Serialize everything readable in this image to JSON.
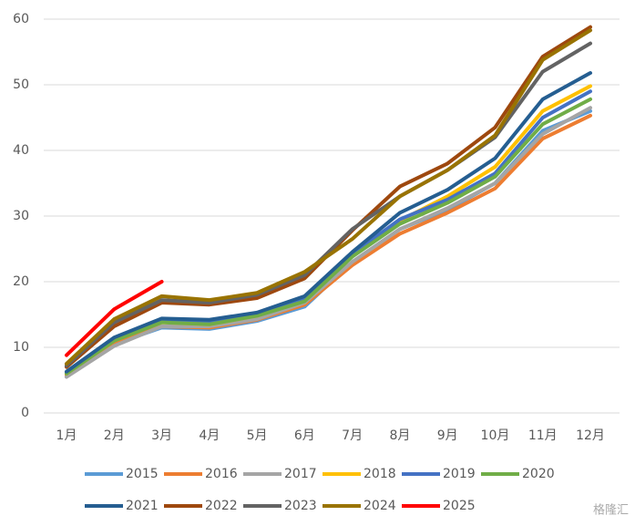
{
  "chart_data": {
    "type": "line",
    "categories": [
      "1月",
      "2月",
      "3月",
      "4月",
      "5月",
      "6月",
      "7月",
      "8月",
      "9月",
      "10月",
      "11月",
      "12月"
    ],
    "ylim": [
      0,
      60
    ],
    "yticks": [
      0,
      10,
      20,
      30,
      40,
      50,
      60
    ],
    "grid": true,
    "series": [
      {
        "name": "2015",
        "color": "#5b9bd5",
        "values": [
          5.5,
          10.5,
          13,
          12.8,
          14,
          16.2,
          23,
          28,
          31,
          35,
          43,
          46
        ]
      },
      {
        "name": "2016",
        "color": "#ed7d31",
        "values": [
          5.8,
          10.8,
          13.2,
          13,
          14.2,
          16.5,
          22.5,
          27.3,
          30.5,
          34.2,
          41.8,
          45.3
        ]
      },
      {
        "name": "2017",
        "color": "#a5a5a5",
        "values": [
          5.5,
          10.2,
          13.2,
          13.2,
          14.3,
          16.8,
          23,
          28,
          31.2,
          35,
          42.5,
          46.5
        ]
      },
      {
        "name": "2018",
        "color": "#ffc000",
        "values": [
          6,
          11,
          13.8,
          13.5,
          14.8,
          17.2,
          24,
          29.3,
          33,
          37.5,
          46,
          49.8
        ]
      },
      {
        "name": "2019",
        "color": "#4472c4",
        "values": [
          6.2,
          11.2,
          14,
          13.8,
          15,
          17.5,
          24.2,
          29.5,
          32.5,
          36.5,
          45,
          49
        ]
      },
      {
        "name": "2020",
        "color": "#70ad47",
        "values": [
          6,
          11,
          13.8,
          13.5,
          14.8,
          17,
          23.8,
          28.8,
          32,
          36,
          44,
          47.8
        ]
      },
      {
        "name": "2021",
        "color": "#255e91",
        "values": [
          6.3,
          11.5,
          14.4,
          14.2,
          15.3,
          17.8,
          24.5,
          30.5,
          34,
          38.8,
          47.8,
          51.8
        ]
      },
      {
        "name": "2022",
        "color": "#9e480e",
        "values": [
          7,
          13.2,
          16.8,
          16.5,
          17.5,
          20.5,
          27.8,
          34.5,
          38,
          43.5,
          54.3,
          58.8
        ]
      },
      {
        "name": "2023",
        "color": "#636363",
        "values": [
          7.2,
          13.8,
          17.2,
          16.8,
          18,
          21,
          28,
          33,
          37,
          42,
          52,
          56.3
        ]
      },
      {
        "name": "2024",
        "color": "#997300",
        "values": [
          7.5,
          14.3,
          17.8,
          17.2,
          18.3,
          21.5,
          26.5,
          33,
          37,
          42.3,
          53.8,
          58.3
        ]
      },
      {
        "name": "2025",
        "color": "#ff0000",
        "values": [
          8.8,
          15.8,
          20,
          null,
          null,
          null,
          null,
          null,
          null,
          null,
          null,
          null
        ]
      }
    ]
  },
  "watermark": "格隆汇"
}
